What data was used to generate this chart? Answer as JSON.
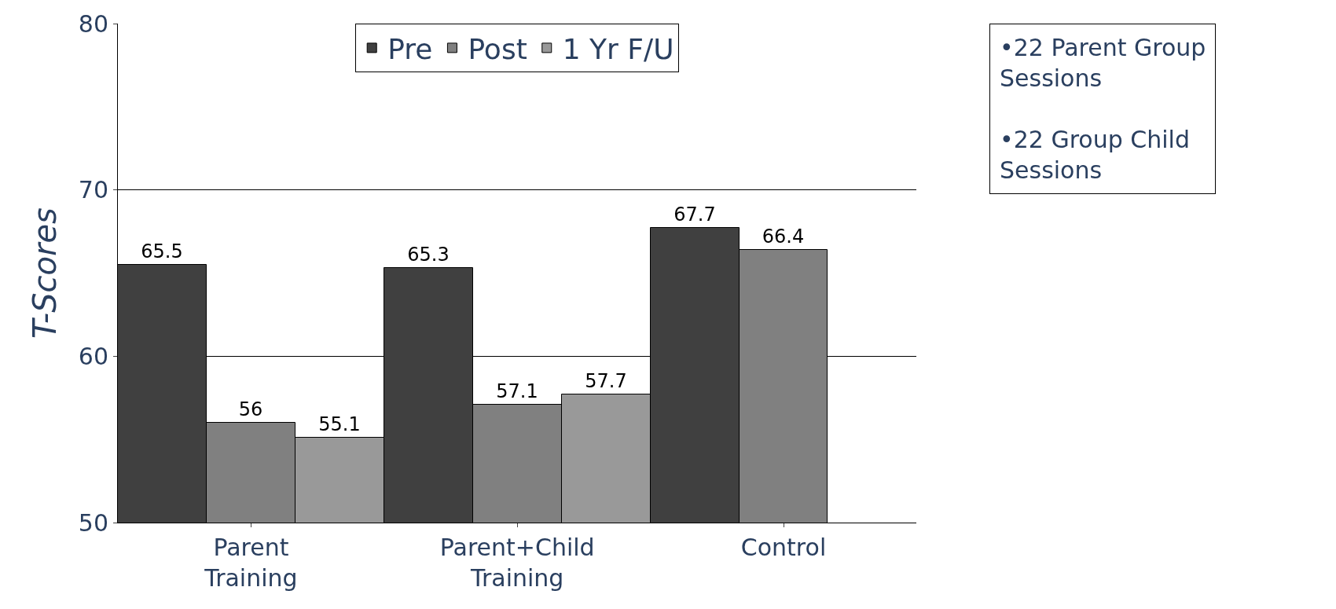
{
  "chart_data": {
    "type": "bar",
    "ylabel": "T-Scores",
    "categories": [
      "Parent Training",
      "Parent+Child Training",
      "Control"
    ],
    "series": [
      {
        "name": "Pre",
        "color": "#404040",
        "values": [
          65.5,
          65.3,
          67.7
        ]
      },
      {
        "name": "Post",
        "color": "#808080",
        "values": [
          56,
          57.1,
          66.4
        ]
      },
      {
        "name": "1 Yr F/U",
        "color": "#999999",
        "values": [
          55.1,
          57.7,
          null
        ]
      }
    ],
    "ylim": [
      50,
      80
    ],
    "yticks": [
      50,
      60,
      70,
      80
    ],
    "grid": "y",
    "legend": "top",
    "data_labels": true,
    "annotations": [
      "•22 Parent Group Sessions",
      "•22 Group Child Sessions"
    ]
  }
}
